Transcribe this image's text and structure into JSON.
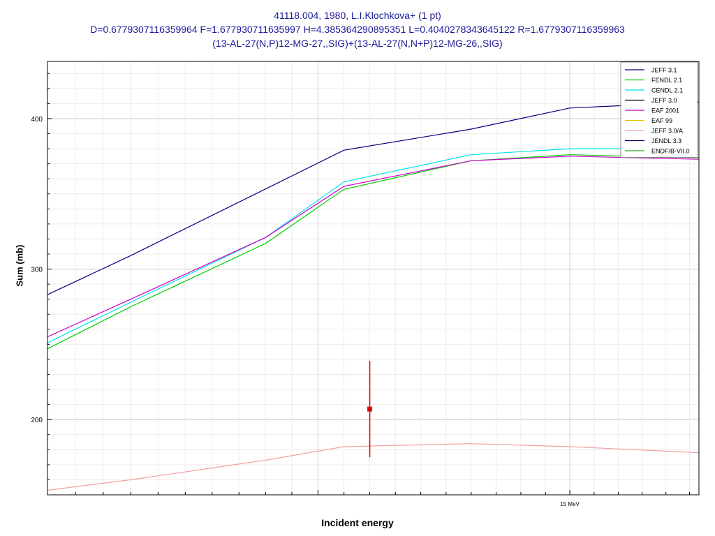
{
  "chart_data": {
    "type": "line",
    "title_lines": [
      "41118.004, 1980, L.I.Klochkova+ (1 pt)",
      "D=0.6779307116359964 F=1.677930711635997 H=4.385364290895351 L=0.4040278343645122 R=1.6779307116359963",
      "(13-AL-27(N,P)12-MG-27,,SIG)+(13-AL-27(N,N+P)12-MG-26,,SIG)"
    ],
    "xlabel": "Incident energy",
    "ylabel": "Sum (mb)",
    "x_scale": "log",
    "xlim": [
      13.0,
      15.54
    ],
    "ylim": [
      150,
      438
    ],
    "x_tick_label": {
      "value": 15,
      "label": "15 MeV"
    },
    "y_ticks": [
      200,
      300,
      400
    ],
    "grid": true,
    "legend_position": "top-right",
    "series": [
      {
        "name": "JEFF 3.1",
        "color": "#000080",
        "x": [
          13.0,
          13.3,
          14.1,
          14.6,
          15.0,
          15.54
        ],
        "y": [
          283,
          309,
          379,
          393,
          407,
          411
        ]
      },
      {
        "name": "FENDL 2.1",
        "color": "#00cc00",
        "x": [
          13.0,
          13.3,
          13.8,
          14.1,
          14.6,
          15.0,
          15.54
        ],
        "y": [
          247,
          275,
          317,
          353,
          372,
          376,
          374
        ]
      },
      {
        "name": "CENDL 2.1",
        "color": "#00e5e5",
        "x": [
          13.0,
          13.3,
          13.8,
          14.1,
          14.6,
          15.0,
          15.54
        ],
        "y": [
          251,
          278,
          321,
          358,
          376,
          380,
          380
        ]
      },
      {
        "name": "JEFF 3.0",
        "color": "#000000",
        "x": [],
        "y": []
      },
      {
        "name": "EAF 2001",
        "color": "#cc00cc",
        "x": [
          13.0,
          13.3,
          13.8,
          14.1,
          14.6,
          15.0,
          15.54
        ],
        "y": [
          255,
          280,
          321,
          355,
          372,
          375,
          373
        ]
      },
      {
        "name": "EAF 99",
        "color": "#e5c000",
        "x": [],
        "y": []
      },
      {
        "name": "JEFF 3.0/A",
        "color": "#f2a0a0",
        "x": [
          13.0,
          13.3,
          13.8,
          14.1,
          14.6,
          15.0,
          15.54
        ],
        "y": [
          153,
          160,
          173,
          182,
          184,
          182,
          178
        ]
      },
      {
        "name": "JENDL 3.3",
        "color": "#000060",
        "x": [],
        "y": []
      },
      {
        "name": "ENDF/B-VII.0",
        "color": "#22aa22",
        "x": [],
        "y": []
      }
    ],
    "experimental_point": {
      "x": 14.2,
      "y": 207,
      "y_err": 32,
      "color": "#e00000"
    }
  }
}
